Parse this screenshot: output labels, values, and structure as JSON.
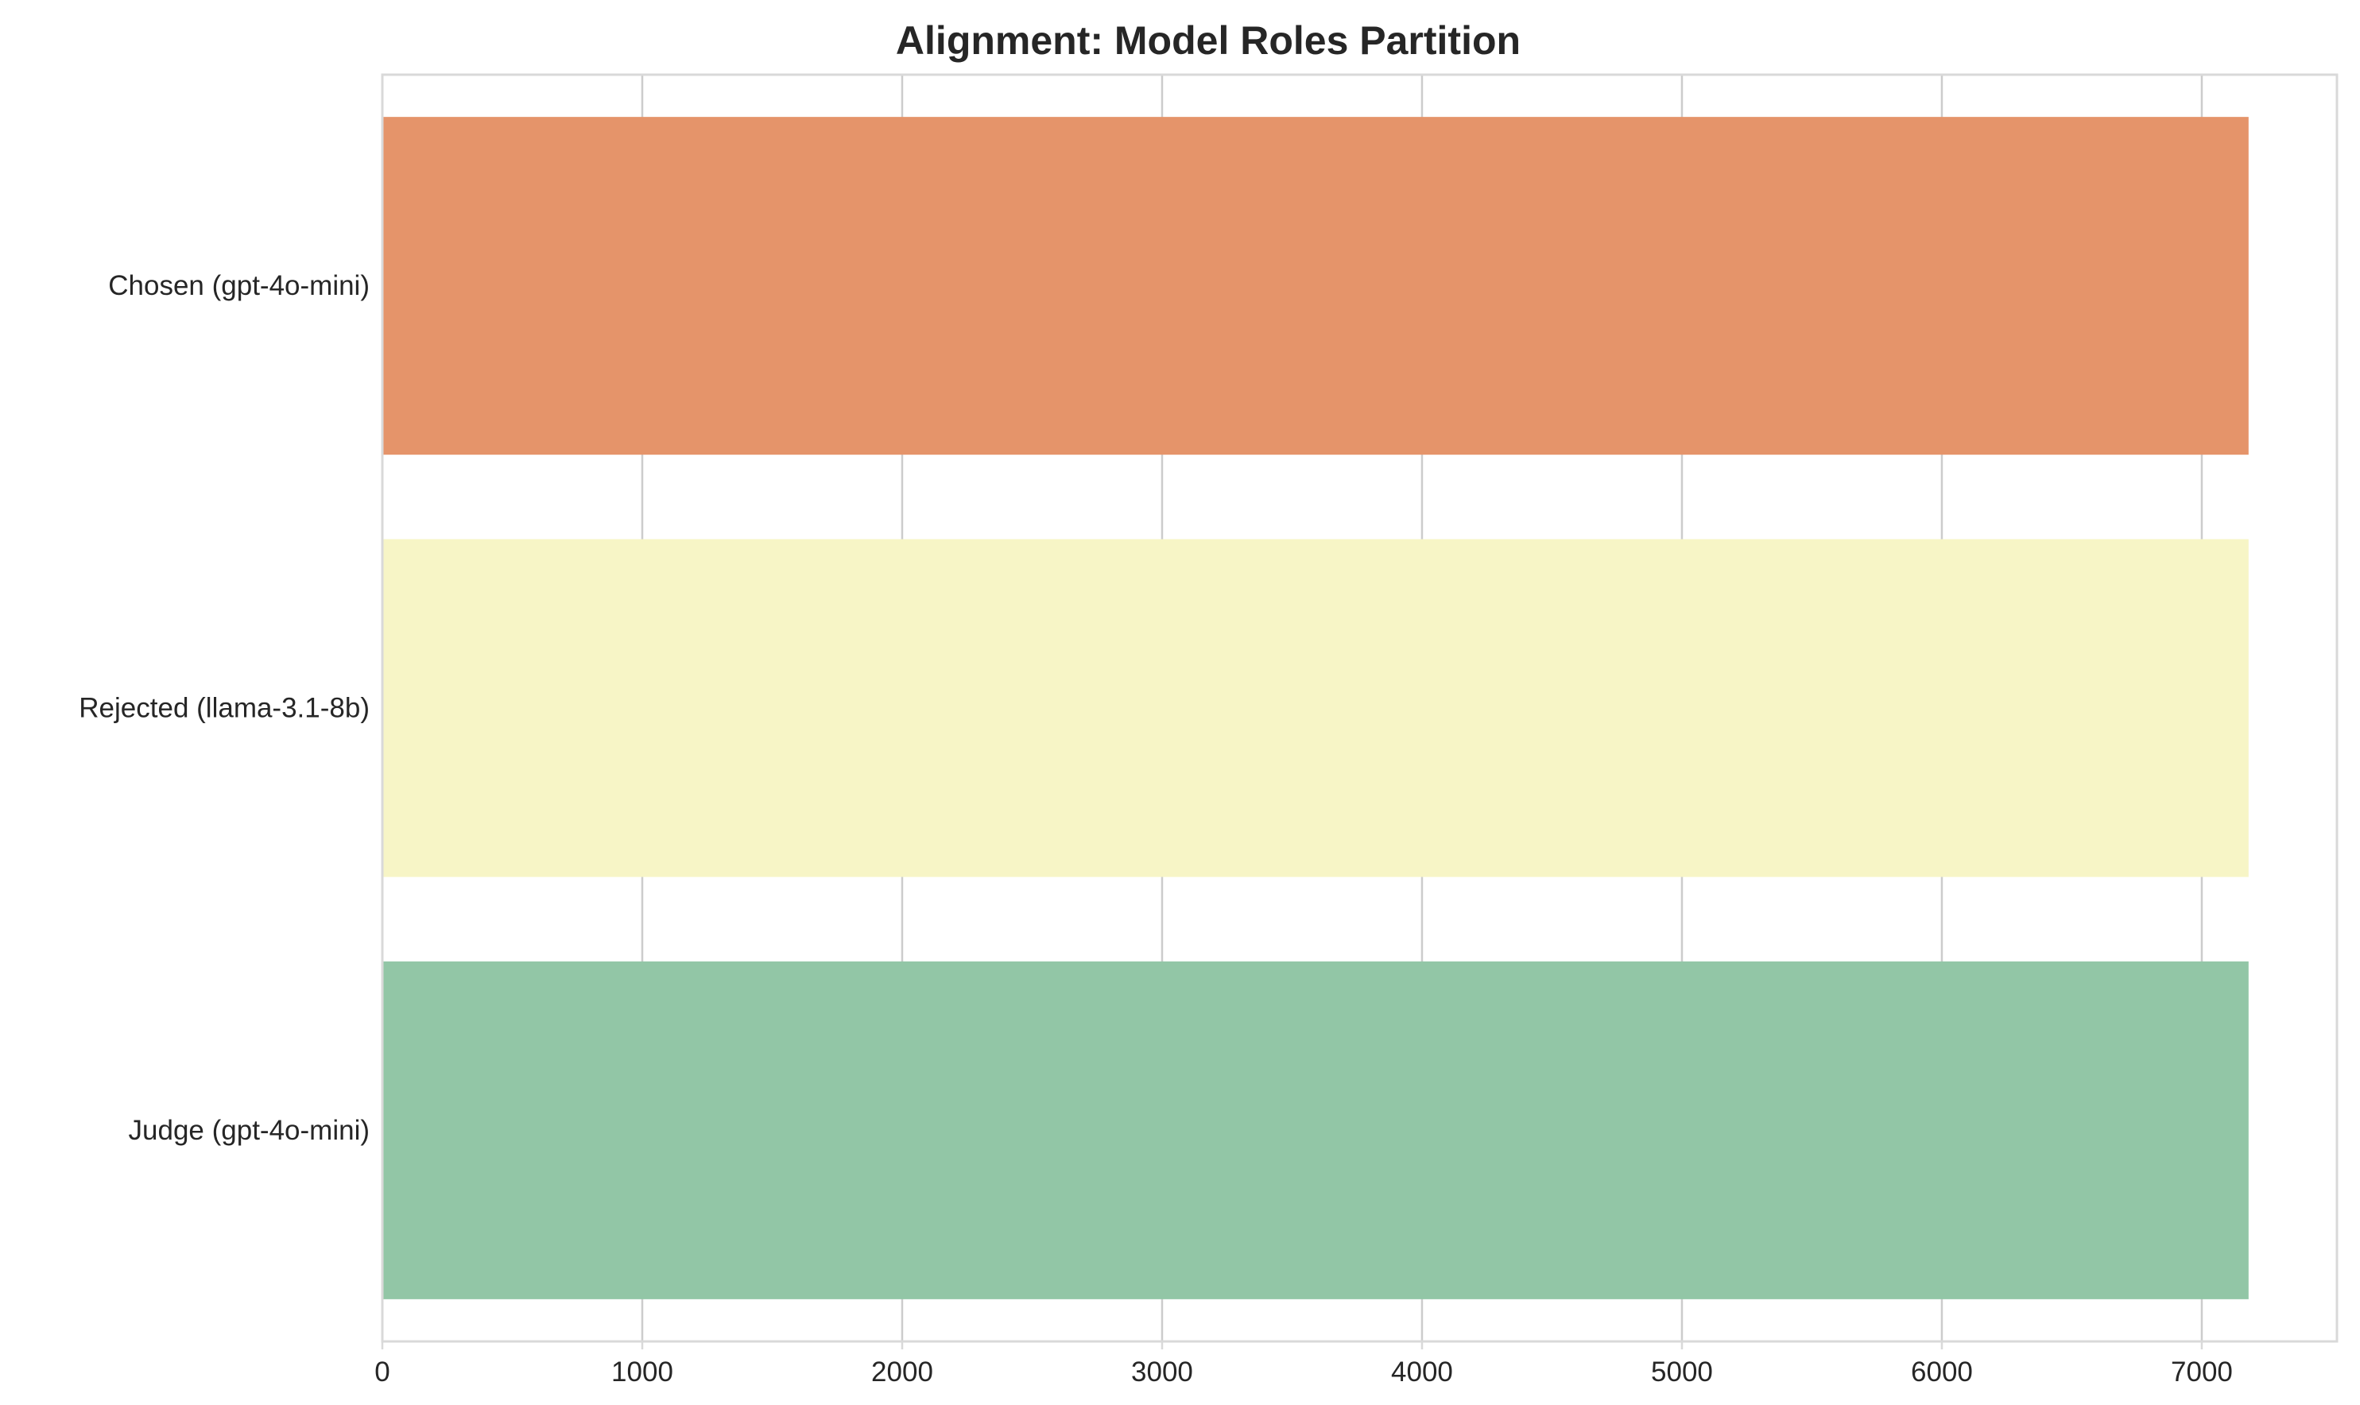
{
  "chart_data": {
    "type": "bar",
    "orientation": "horizontal",
    "title": "Alignment: Model Roles Partition",
    "xlabel": "",
    "ylabel": "",
    "categories": [
      "Chosen (gpt-4o-mini)",
      "Rejected (llama-3.1-8b)",
      "Judge (gpt-4o-mini)"
    ],
    "values": [
      7180,
      7180,
      7180
    ],
    "colors": [
      "#e5946a",
      "#f7f5c6",
      "#92c6a6"
    ],
    "xlim": [
      0,
      7520
    ],
    "xticks": [
      0,
      1000,
      2000,
      3000,
      4000,
      5000,
      6000,
      7000
    ],
    "grid": true,
    "grid_axis": "x"
  }
}
